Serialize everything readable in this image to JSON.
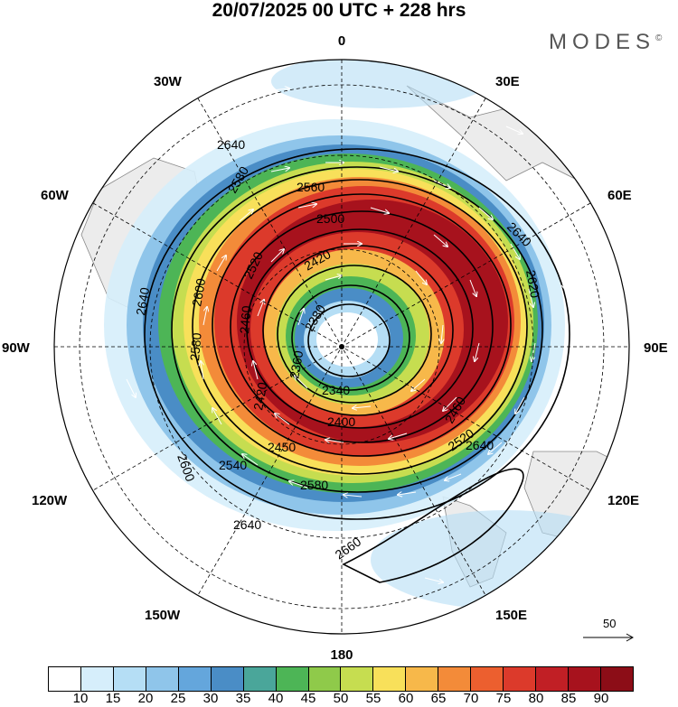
{
  "title": "20/07/2025  00 UTC  + 228 hrs",
  "brand": "MODES",
  "brand_mark": "©",
  "longitude_labels": [
    "0",
    "30E",
    "60E",
    "90E",
    "120E",
    "150E",
    "180",
    "150W",
    "120W",
    "90W",
    "60W",
    "30W"
  ],
  "contour_labels": [
    "2640",
    "2580",
    "2600",
    "2500",
    "2560",
    "2520",
    "2420",
    "2380",
    "2360",
    "2340",
    "2400",
    "2450",
    "2460",
    "2620",
    "2660",
    "2540"
  ],
  "reference_vector_label": "50",
  "colorbar": {
    "colors": [
      "#ffffff",
      "#d6eefb",
      "#b5def5",
      "#8fc5ea",
      "#64a6dc",
      "#4a8dc6",
      "#4aa69a",
      "#4db556",
      "#8fca4a",
      "#c6dd50",
      "#f8e05a",
      "#f7b84a",
      "#f38b39",
      "#ec5f2f",
      "#dc3a2b",
      "#c11f25",
      "#a7121d",
      "#8c0d17"
    ],
    "labels": [
      "10",
      "15",
      "20",
      "25",
      "30",
      "35",
      "40",
      "45",
      "50",
      "55",
      "60",
      "65",
      "70",
      "75",
      "80",
      "85",
      "90"
    ]
  }
}
